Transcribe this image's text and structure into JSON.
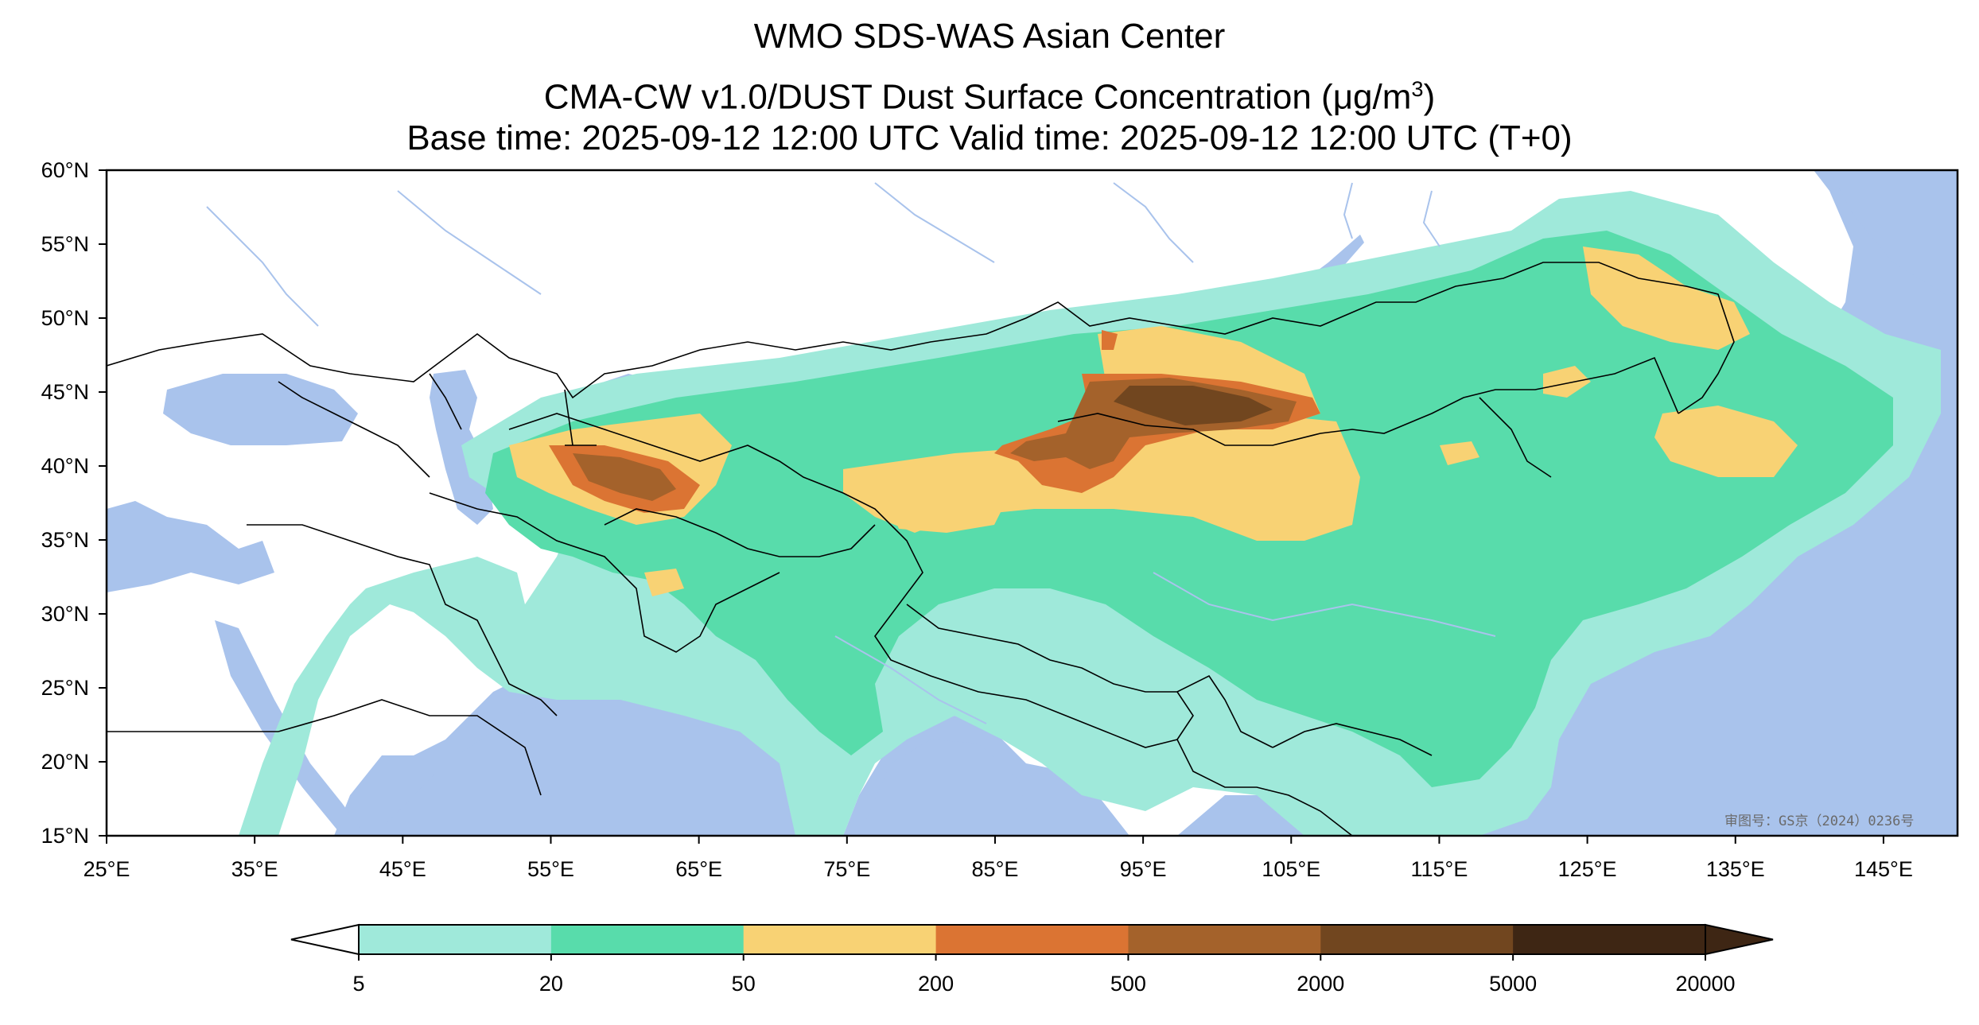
{
  "header": {
    "line1": "WMO SDS-WAS Asian Center",
    "line2_prefix": "CMA-CW v1.0/DUST Dust Surface Concentration (",
    "line2_unit": "μg/m",
    "line2_exp": "3",
    "line2_suffix": ")",
    "line3": "Base time: 2025-09-12 12:00 UTC Valid time: 2025-09-12 12:00 UTC (T+0)"
  },
  "map": {
    "lat_labels": [
      "60°N",
      "55°N",
      "50°N",
      "45°N",
      "40°N",
      "35°N",
      "30°N",
      "25°N",
      "20°N",
      "15°N"
    ],
    "lon_labels": [
      "25°E",
      "35°E",
      "45°E",
      "55°E",
      "65°E",
      "75°E",
      "85°E",
      "95°E",
      "105°E",
      "115°E",
      "125°E",
      "135°E",
      "145°E"
    ],
    "lat_range": [
      15,
      60
    ],
    "lon_range": [
      25,
      150
    ],
    "approval_text": "审图号：GS京（2024）0236号",
    "colors": {
      "ocean": "#a9c3ec",
      "land": "#ffffff",
      "border": "#000000",
      "river": "#a9c3ec"
    }
  },
  "colorbar": {
    "ticks": [
      "5",
      "20",
      "50",
      "200",
      "500",
      "2000",
      "5000",
      "20000"
    ],
    "colors": [
      "#9fe9da",
      "#58dcab",
      "#f8d274",
      "#db7433",
      "#a4622b",
      "#71461f",
      "#3e2614"
    ]
  }
}
